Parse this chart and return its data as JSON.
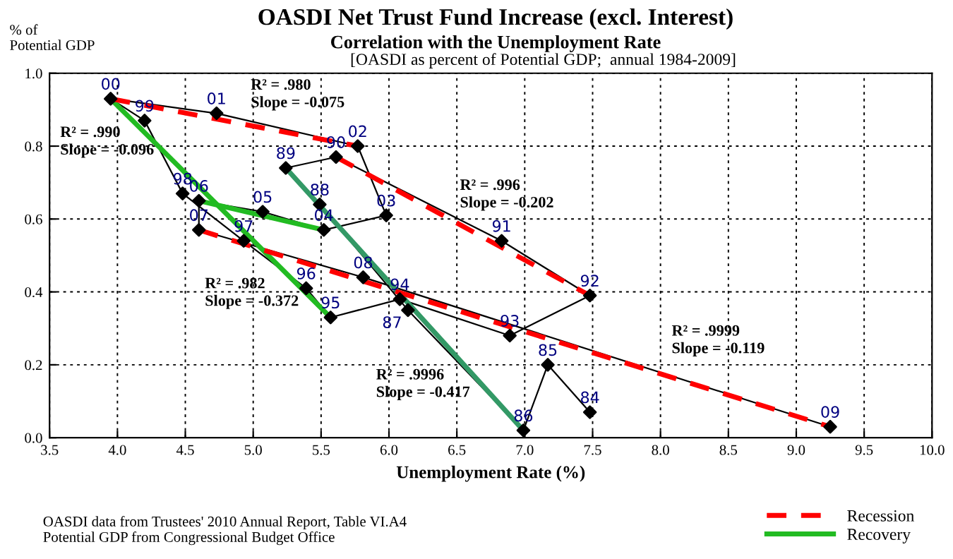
{
  "chart_data": {
    "type": "line",
    "title": "OASDI Net Trust Fund Increase (excl. Interest)",
    "subtitle": "Correlation with the Unemployment Rate\n[OASDI as percent of Potential GDP;  annual 1984-2009]",
    "xlabel": "Unemployment Rate (%)",
    "ylabel": "% of\nPotential GDP",
    "xlim": [
      3.5,
      10.0
    ],
    "xticks": [
      3.5,
      {
        "value": 4,
        "label": "4.0"
      },
      4.5,
      {
        "value": 5,
        "label": "5.0"
      },
      5.5,
      {
        "value": 6,
        "label": "6.0"
      },
      6.5,
      {
        "value": 7,
        "label": "7.0"
      },
      7.5,
      {
        "value": 8,
        "label": "8.0"
      },
      8.5,
      {
        "value": 9,
        "label": "9.0"
      },
      9.5,
      {
        "value": 10,
        "label": "10.0"
      }
    ],
    "ylim": [
      0.0,
      1.0
    ],
    "yticks": [
      {
        "value": 0,
        "label": "0.0"
      },
      0.2,
      0.4,
      0.6,
      0.8,
      {
        "value": 1,
        "label": "1.0"
      }
    ],
    "grid": true,
    "legend": "bottom right",
    "series": [
      {
        "color": "#000000",
        "marker": "diamond",
        "line_style": "solid",
        "x": [
          7.48,
          7.17,
          6.99,
          6.14,
          5.49,
          5.24,
          5.61,
          6.83,
          7.48,
          6.89,
          6.08,
          5.57,
          5.39,
          4.93,
          4.48,
          4.2,
          3.95,
          4.73,
          5.77,
          5.98,
          5.52,
          5.07,
          4.6,
          4.6,
          5.81,
          9.25
        ],
        "values": [
          0.07,
          0.2,
          0.02,
          0.35,
          0.64,
          0.74,
          0.77,
          0.54,
          0.39,
          0.28,
          0.38,
          0.33,
          0.41,
          0.54,
          0.67,
          0.87,
          0.93,
          0.89,
          0.8,
          0.61,
          0.57,
          0.62,
          0.65,
          0.57,
          0.44,
          0.03
        ]
      },
      {
        "name": "Recession",
        "color": "#ff0000",
        "line_style": "dashed",
        "x": [
          3.95,
          5.77
        ],
        "values": [
          0.93,
          0.8
        ]
      },
      {
        "color": "#ff0000",
        "line_style": "dashed",
        "x": [
          5.61,
          7.48
        ],
        "values": [
          0.77,
          0.39
        ]
      },
      {
        "color": "#ff0000",
        "line_style": "dashed",
        "x": [
          4.6,
          9.25
        ],
        "values": [
          0.57,
          0.03
        ]
      },
      {
        "name": "Recovery",
        "color": "#22bb22",
        "line_style": "solid",
        "x": [
          3.95,
          5.57
        ],
        "values": [
          0.93,
          0.33
        ]
      },
      {
        "color": "#22bb22",
        "line_style": "solid",
        "x": [
          4.6,
          5.52
        ],
        "values": [
          0.65,
          0.57
        ]
      },
      {
        "color": "#339966",
        "line_style": "solid",
        "x": [
          5.24,
          6.99
        ],
        "values": [
          0.74,
          0.02
        ]
      }
    ],
    "annotations": [
      {
        "text": "84",
        "x": 7.48,
        "y": 0.07
      },
      {
        "text": "85",
        "x": 7.17,
        "y": 0.2
      },
      {
        "text": "86",
        "x": 6.99,
        "y": 0.02
      },
      {
        "text": "87",
        "x": 6.14,
        "y": 0.35
      },
      {
        "text": "88",
        "x": 5.49,
        "y": 0.64
      },
      {
        "text": "89",
        "x": 5.24,
        "y": 0.74
      },
      {
        "text": "90",
        "x": 5.61,
        "y": 0.77
      },
      {
        "text": "91",
        "x": 6.83,
        "y": 0.54
      },
      {
        "text": "92",
        "x": 7.48,
        "y": 0.39
      },
      {
        "text": "93",
        "x": 6.89,
        "y": 0.28
      },
      {
        "text": "94",
        "x": 6.08,
        "y": 0.38
      },
      {
        "text": "95",
        "x": 5.57,
        "y": 0.33
      },
      {
        "text": "96",
        "x": 5.39,
        "y": 0.41
      },
      {
        "text": "97",
        "x": 4.93,
        "y": 0.54
      },
      {
        "text": "98",
        "x": 4.48,
        "y": 0.67
      },
      {
        "text": "99",
        "x": 4.2,
        "y": 0.87
      },
      {
        "text": "00",
        "x": 3.95,
        "y": 0.93
      },
      {
        "text": "01",
        "x": 4.73,
        "y": 0.89
      },
      {
        "text": "02",
        "x": 5.77,
        "y": 0.8
      },
      {
        "text": "03",
        "x": 5.98,
        "y": 0.61
      },
      {
        "text": "04",
        "x": 5.52,
        "y": 0.57
      },
      {
        "text": "05",
        "x": 5.07,
        "y": 0.62
      },
      {
        "text": "06",
        "x": 4.6,
        "y": 0.65
      },
      {
        "text": "07",
        "x": 4.6,
        "y": 0.57
      },
      {
        "text": "08",
        "x": 5.81,
        "y": 0.44
      },
      {
        "text": "09",
        "x": 9.25,
        "y": 0.03
      },
      "R² = .980\nSlope = -0.075",
      "R² = .990\nSlope = -0.096",
      "R² = .996\nSlope = -0.202",
      "R² = .982\nSlope = -0.372",
      "R² = .9996\nSlope = -0.417",
      "R² = .9999\nSlope = -0.119",
      "OASDI data from Trustees' 2010 Annual Report, Table VI.A4\nPotential GDP from Congressional Budget Office"
    ]
  }
}
